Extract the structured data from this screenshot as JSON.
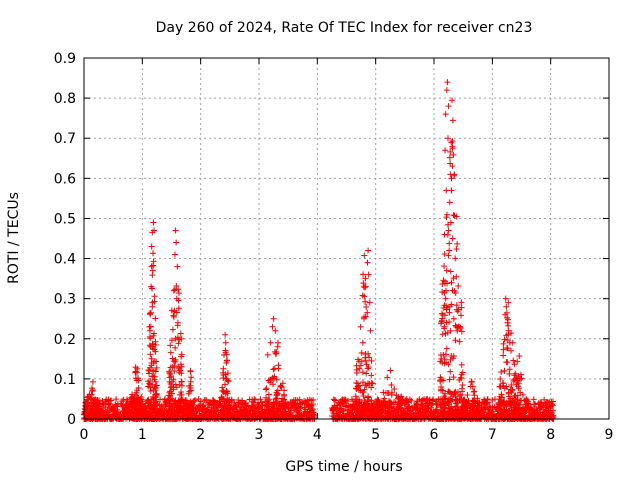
{
  "chart_data": {
    "type": "scatter",
    "title": "Day 260 of 2024, Rate Of TEC Index for receiver cn23",
    "xlabel": "GPS time / hours",
    "ylabel": "ROTI / TECUs",
    "xlim": [
      0,
      9
    ],
    "ylim": [
      0,
      0.9
    ],
    "x_ticks": [
      "0",
      "1",
      "2",
      "3",
      "4",
      "5",
      "6",
      "7",
      "8",
      "9"
    ],
    "y_ticks": [
      "0",
      "0.1",
      "0.2",
      "0.3",
      "0.4",
      "0.5",
      "0.6",
      "0.7",
      "0.8",
      "0.9"
    ],
    "grid": true,
    "marker": "+",
    "series_color": "#ff0000",
    "data_coverage_hours": [
      [
        0.0,
        3.95
      ],
      [
        4.25,
        8.05
      ]
    ],
    "baseline_range": [
      0.0,
      0.05
    ],
    "peaks": [
      {
        "x": [
          0.0,
          0.3
        ],
        "y": [
          0.0,
          0.1
        ]
      },
      {
        "x": [
          0.8,
          1.0
        ],
        "y": [
          0.0,
          0.15
        ]
      },
      {
        "x": [
          1.1,
          1.25
        ],
        "y": [
          0.0,
          0.49
        ]
      },
      {
        "x": [
          1.45,
          1.7
        ],
        "y": [
          0.0,
          0.47
        ]
      },
      {
        "x": [
          1.75,
          1.9
        ],
        "y": [
          0.0,
          0.13
        ]
      },
      {
        "x": [
          2.35,
          2.5
        ],
        "y": [
          0.0,
          0.21
        ]
      },
      {
        "x": [
          3.1,
          3.45
        ],
        "y": [
          0.0,
          0.25
        ]
      },
      {
        "x": [
          4.65,
          4.95
        ],
        "y": [
          0.0,
          0.42
        ]
      },
      {
        "x": [
          5.0,
          5.5
        ],
        "y": [
          0.0,
          0.13
        ]
      },
      {
        "x": [
          6.1,
          6.5
        ],
        "y": [
          0.0,
          0.84
        ]
      },
      {
        "x": [
          6.5,
          6.8
        ],
        "y": [
          0.0,
          0.1
        ]
      },
      {
        "x": [
          7.1,
          7.45
        ],
        "y": [
          0.0,
          0.3
        ]
      },
      {
        "x": [
          7.3,
          7.6
        ],
        "y": [
          0.0,
          0.19
        ]
      }
    ],
    "points": [
      [
        1.19,
        0.49
      ],
      [
        1.2,
        0.47
      ],
      [
        1.16,
        0.43
      ],
      [
        1.18,
        0.37
      ],
      [
        1.15,
        0.33
      ],
      [
        1.17,
        0.28
      ],
      [
        1.13,
        0.22
      ],
      [
        1.14,
        0.18
      ],
      [
        1.57,
        0.47
      ],
      [
        1.58,
        0.44
      ],
      [
        1.56,
        0.41
      ],
      [
        1.6,
        0.38
      ],
      [
        1.54,
        0.32
      ],
      [
        1.59,
        0.3
      ],
      [
        1.55,
        0.27
      ],
      [
        1.61,
        0.24
      ],
      [
        1.57,
        0.2
      ],
      [
        2.42,
        0.21
      ],
      [
        2.43,
        0.19
      ],
      [
        2.4,
        0.16
      ],
      [
        2.44,
        0.14
      ],
      [
        3.25,
        0.25
      ],
      [
        3.23,
        0.23
      ],
      [
        3.28,
        0.22
      ],
      [
        3.2,
        0.19
      ],
      [
        3.32,
        0.18
      ],
      [
        3.15,
        0.16
      ],
      [
        4.87,
        0.42
      ],
      [
        4.86,
        0.39
      ],
      [
        4.88,
        0.36
      ],
      [
        4.83,
        0.33
      ],
      [
        4.9,
        0.29
      ],
      [
        4.8,
        0.25
      ],
      [
        4.91,
        0.22
      ],
      [
        4.78,
        0.19
      ],
      [
        6.23,
        0.84
      ],
      [
        6.22,
        0.82
      ],
      [
        6.25,
        0.78
      ],
      [
        6.2,
        0.76
      ],
      [
        6.24,
        0.7
      ],
      [
        6.19,
        0.67
      ],
      [
        6.28,
        0.61
      ],
      [
        6.3,
        0.6
      ],
      [
        6.21,
        0.57
      ],
      [
        6.27,
        0.54
      ],
      [
        6.29,
        0.49
      ],
      [
        6.25,
        0.47
      ],
      [
        6.18,
        0.46
      ],
      [
        6.32,
        0.45
      ],
      [
        6.26,
        0.42
      ],
      [
        6.22,
        0.37
      ],
      [
        6.3,
        0.34
      ],
      [
        6.2,
        0.3
      ],
      [
        6.27,
        0.28
      ],
      [
        6.34,
        0.25
      ],
      [
        6.38,
        0.23
      ],
      [
        6.4,
        0.22
      ],
      [
        6.18,
        0.23
      ],
      [
        6.14,
        0.14
      ],
      [
        6.16,
        0.16
      ],
      [
        7.23,
        0.3
      ],
      [
        7.24,
        0.28
      ],
      [
        7.22,
        0.26
      ],
      [
        7.26,
        0.24
      ],
      [
        7.28,
        0.22
      ],
      [
        7.3,
        0.19
      ],
      [
        7.35,
        0.19
      ],
      [
        7.32,
        0.17
      ]
    ]
  }
}
